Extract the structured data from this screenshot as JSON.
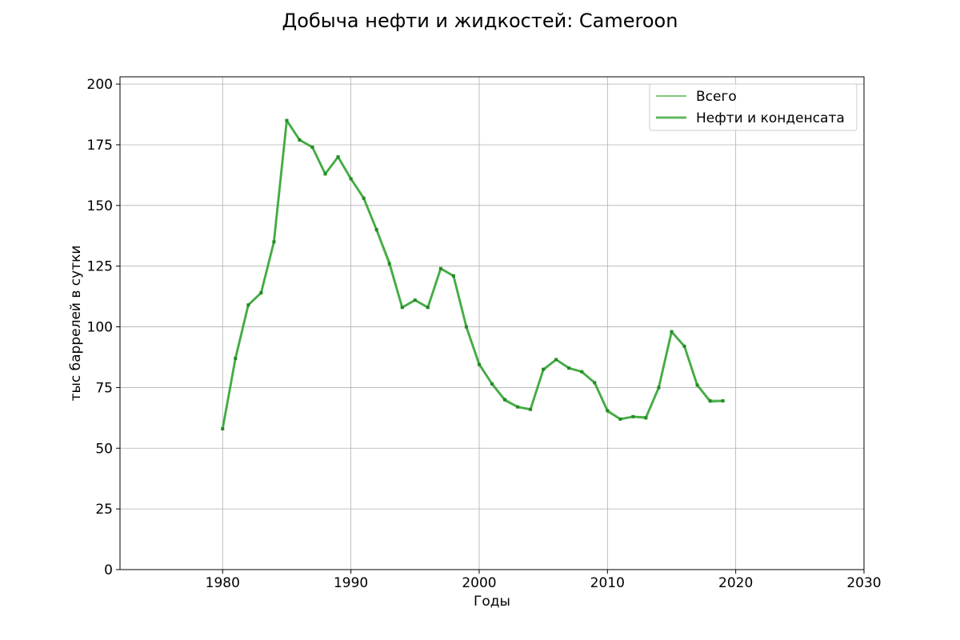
{
  "chart_data": {
    "type": "line",
    "title": "Добыча нефти и жидкостей: Cameroon",
    "xlabel": "Годы",
    "ylabel": "тыс баррелей в сутки",
    "xlim": [
      1972,
      2030
    ],
    "ylim": [
      0,
      203
    ],
    "xticks": [
      1980,
      1990,
      2000,
      2010,
      2020,
      2030
    ],
    "yticks": [
      0,
      25,
      50,
      75,
      100,
      125,
      150,
      175,
      200
    ],
    "grid": true,
    "legend_position": "top-right",
    "x": [
      1980,
      1981,
      1982,
      1983,
      1984,
      1985,
      1986,
      1987,
      1988,
      1989,
      1990,
      1991,
      1992,
      1993,
      1994,
      1995,
      1996,
      1997,
      1998,
      1999,
      2000,
      2001,
      2002,
      2003,
      2004,
      2005,
      2006,
      2007,
      2008,
      2009,
      2010,
      2011,
      2012,
      2013,
      2014,
      2015,
      2016,
      2017,
      2018,
      2019
    ],
    "series": [
      {
        "name": "Всего",
        "color": "#2ca02c",
        "values": [
          58,
          87,
          109,
          114,
          135,
          185,
          177,
          174,
          163,
          170,
          161,
          153,
          140,
          127,
          108,
          111,
          108,
          124,
          121,
          100,
          85,
          76.5,
          69.5,
          67,
          66,
          82,
          86.5,
          83,
          81.5,
          77,
          65,
          62,
          63,
          63,
          75,
          98,
          92,
          76,
          69,
          69.5
        ]
      },
      {
        "name": "Нефти и конденсата",
        "color": "#2ca02c",
        "values": [
          58,
          87,
          109,
          114,
          135,
          185,
          177,
          174,
          163,
          170,
          161,
          153,
          140,
          126,
          108,
          111,
          108,
          124,
          121,
          100,
          84.5,
          76.5,
          70,
          67,
          66,
          82.5,
          86.5,
          83,
          81.5,
          77,
          65.5,
          62,
          63,
          62.5,
          75,
          98,
          92,
          76,
          69.5,
          69.5
        ]
      }
    ]
  }
}
